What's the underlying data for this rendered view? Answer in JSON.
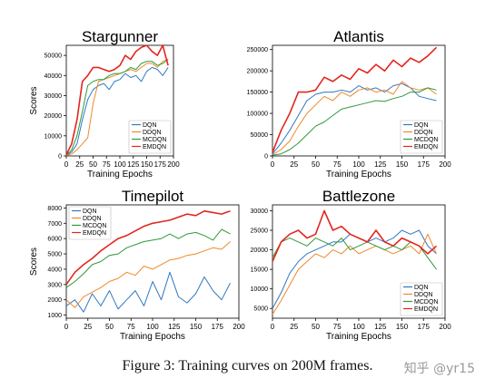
{
  "caption": "Figure 3: Training curves on 200M frames.",
  "watermark": "知乎 @yr15",
  "series_colors": {
    "DQN": "#2f78c4",
    "DDQN": "#f0882a",
    "MCDQN": "#2e9a3a",
    "EMDQN": "#e3261f"
  },
  "chart_data": [
    {
      "type": "line",
      "title": "Stargunner",
      "xlabel": "Training Epochs",
      "ylabel": "Scores",
      "xlim": [
        0,
        200
      ],
      "ylim": [
        0,
        55000
      ],
      "xticks": [
        0,
        25,
        50,
        75,
        100,
        125,
        150,
        175,
        200
      ],
      "yticks": [
        0,
        10000,
        20000,
        30000,
        40000,
        50000
      ],
      "legend_position": "bottom-right",
      "grid": false,
      "x": [
        0,
        10,
        20,
        30,
        40,
        50,
        60,
        70,
        80,
        90,
        100,
        110,
        120,
        130,
        140,
        150,
        160,
        170,
        180,
        190
      ],
      "series": [
        {
          "name": "DQN",
          "values": [
            200,
            2000,
            6000,
            18000,
            28000,
            33000,
            35000,
            36000,
            33000,
            37000,
            38000,
            41000,
            39000,
            40000,
            37000,
            42000,
            44000,
            43000,
            40000,
            44000
          ]
        },
        {
          "name": "DDQN",
          "values": [
            200,
            1000,
            3000,
            6000,
            9000,
            26000,
            37000,
            38000,
            39000,
            40000,
            41000,
            42000,
            43000,
            42000,
            44000,
            46000,
            46000,
            44000,
            47000,
            48000
          ]
        },
        {
          "name": "MCDQN",
          "values": [
            300,
            3000,
            10000,
            22000,
            35000,
            37000,
            38000,
            38000,
            40000,
            41000,
            41000,
            42000,
            44000,
            43000,
            46000,
            47000,
            47000,
            45000,
            46000,
            48000
          ]
        },
        {
          "name": "EMDQN",
          "values": [
            500,
            6000,
            18000,
            37000,
            40000,
            44000,
            44000,
            43000,
            42000,
            43000,
            45000,
            50000,
            48000,
            52000,
            54000,
            55000,
            52000,
            50000,
            55000,
            45000
          ]
        }
      ]
    },
    {
      "type": "line",
      "title": "Atlantis",
      "xlabel": "Training Epochs",
      "ylabel": "",
      "xlim": [
        0,
        200
      ],
      "ylim": [
        0,
        260000
      ],
      "xticks": [
        0,
        25,
        50,
        75,
        100,
        125,
        150,
        175,
        200
      ],
      "yticks": [
        0,
        50000,
        100000,
        150000,
        200000,
        250000
      ],
      "legend_position": "bottom-right",
      "grid": false,
      "x": [
        0,
        10,
        20,
        30,
        40,
        50,
        60,
        70,
        80,
        90,
        100,
        110,
        120,
        130,
        140,
        150,
        160,
        170,
        180,
        190
      ],
      "series": [
        {
          "name": "DQN",
          "values": [
            5000,
            30000,
            60000,
            95000,
            130000,
            145000,
            150000,
            150000,
            155000,
            150000,
            165000,
            155000,
            160000,
            150000,
            165000,
            170000,
            160000,
            140000,
            135000,
            130000
          ]
        },
        {
          "name": "DDQN",
          "values": [
            3000,
            15000,
            35000,
            70000,
            100000,
            120000,
            140000,
            130000,
            150000,
            140000,
            155000,
            160000,
            150000,
            155000,
            145000,
            175000,
            160000,
            155000,
            160000,
            145000
          ]
        },
        {
          "name": "MCDQN",
          "values": [
            2000,
            5000,
            15000,
            30000,
            50000,
            70000,
            80000,
            95000,
            110000,
            115000,
            120000,
            125000,
            130000,
            128000,
            135000,
            140000,
            150000,
            150000,
            160000,
            155000
          ]
        },
        {
          "name": "EMDQN",
          "values": [
            8000,
            60000,
            100000,
            150000,
            150000,
            155000,
            185000,
            175000,
            190000,
            180000,
            205000,
            195000,
            215000,
            200000,
            225000,
            210000,
            230000,
            220000,
            235000,
            255000
          ]
        }
      ]
    },
    {
      "type": "line",
      "title": "Timepilot",
      "xlabel": "Training Epochs",
      "ylabel": "Scores",
      "xlim": [
        0,
        200
      ],
      "ylim": [
        800,
        8200
      ],
      "xticks": [
        0,
        25,
        50,
        75,
        100,
        125,
        150,
        175,
        200
      ],
      "yticks": [
        1000,
        2000,
        3000,
        4000,
        5000,
        6000,
        7000,
        8000
      ],
      "legend_position": "top-left",
      "grid": false,
      "x": [
        0,
        10,
        20,
        30,
        40,
        50,
        60,
        70,
        80,
        90,
        100,
        110,
        120,
        130,
        140,
        150,
        160,
        170,
        180,
        190
      ],
      "series": [
        {
          "name": "DQN",
          "values": [
            1600,
            2000,
            1200,
            2400,
            1600,
            2600,
            1400,
            2000,
            2600,
            1600,
            3200,
            2000,
            3800,
            2200,
            1800,
            2400,
            3500,
            2600,
            2000,
            3100
          ]
        },
        {
          "name": "DDQN",
          "values": [
            2000,
            1500,
            2200,
            2500,
            2800,
            3200,
            3400,
            3800,
            3600,
            4200,
            4000,
            4300,
            4600,
            4700,
            4900,
            5000,
            5200,
            5400,
            5300,
            5800
          ]
        },
        {
          "name": "MCDQN",
          "values": [
            2800,
            3200,
            3700,
            4300,
            4500,
            4900,
            5000,
            5400,
            5600,
            5800,
            5900,
            6000,
            6300,
            6000,
            6300,
            6400,
            6200,
            5900,
            6600,
            6300
          ]
        },
        {
          "name": "EMDQN",
          "values": [
            3000,
            3800,
            4300,
            4700,
            5200,
            5600,
            6000,
            6200,
            6500,
            6800,
            7000,
            7100,
            7200,
            7400,
            7600,
            7500,
            7800,
            7700,
            7600,
            7800
          ]
        }
      ]
    },
    {
      "type": "line",
      "title": "Battlezone",
      "xlabel": "Training Epochs",
      "ylabel": "",
      "xlim": [
        0,
        200
      ],
      "ylim": [
        2500,
        31500
      ],
      "xticks": [
        0,
        25,
        50,
        75,
        100,
        125,
        150,
        175,
        200
      ],
      "yticks": [
        5000,
        10000,
        15000,
        20000,
        25000,
        30000
      ],
      "legend_position": "bottom-right",
      "grid": false,
      "x": [
        0,
        10,
        20,
        30,
        40,
        50,
        60,
        70,
        80,
        90,
        100,
        110,
        120,
        130,
        140,
        150,
        160,
        170,
        180,
        190
      ],
      "series": [
        {
          "name": "DQN",
          "values": [
            5000,
            9000,
            14000,
            17000,
            19000,
            20000,
            21000,
            22000,
            22000,
            24000,
            23000,
            22000,
            23000,
            22000,
            23000,
            25000,
            24000,
            25000,
            21000,
            19000
          ]
        },
        {
          "name": "DDQN",
          "values": [
            3500,
            7000,
            11000,
            15000,
            17000,
            19000,
            18000,
            20000,
            19000,
            21000,
            19000,
            20000,
            21000,
            20000,
            19000,
            20000,
            21000,
            19000,
            24000,
            19000
          ]
        },
        {
          "name": "MCDQN",
          "values": [
            18000,
            22000,
            23000,
            22000,
            21000,
            23000,
            22000,
            21000,
            23000,
            20000,
            21000,
            22000,
            21000,
            20000,
            21000,
            20000,
            22000,
            21000,
            18000,
            15000
          ]
        },
        {
          "name": "EMDQN",
          "values": [
            17000,
            22000,
            24000,
            25000,
            23000,
            24000,
            30000,
            25000,
            26000,
            24000,
            23000,
            22000,
            25000,
            22000,
            21000,
            23000,
            22000,
            21000,
            19000,
            21000
          ]
        }
      ]
    }
  ]
}
